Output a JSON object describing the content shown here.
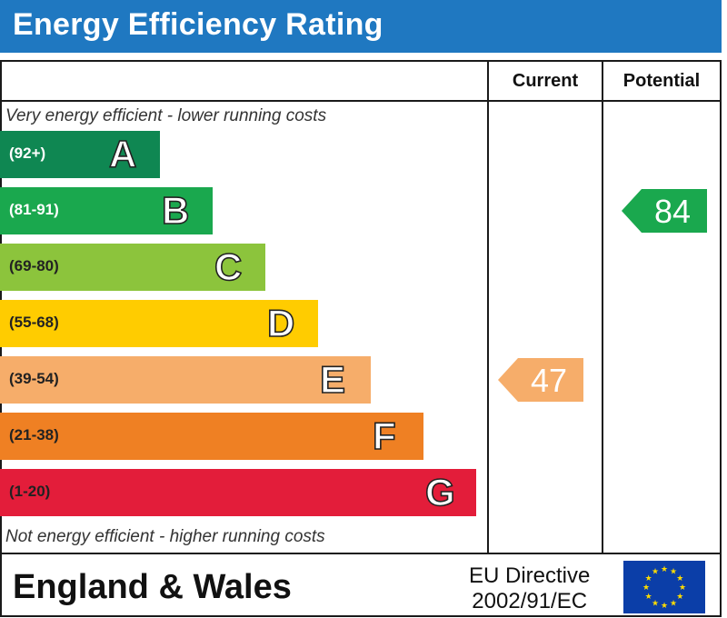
{
  "header": {
    "title": "Energy Efficiency Rating"
  },
  "columns": {
    "current": "Current",
    "potential": "Potential"
  },
  "captions": {
    "top": "Very energy efficient - lower running costs",
    "bottom": "Not energy efficient - higher running costs"
  },
  "chart_data": {
    "type": "bar",
    "categories": [
      "A",
      "B",
      "C",
      "D",
      "E",
      "F",
      "G"
    ],
    "ranges": [
      "(92+)",
      "(81-91)",
      "(69-80)",
      "(55-68)",
      "(39-54)",
      "(21-38)",
      "(1-20)"
    ],
    "colors": [
      "#0f8752",
      "#1aa84e",
      "#8cc43c",
      "#ffcc00",
      "#f6ad6a",
      "#ef8023",
      "#e31d3a"
    ],
    "current": {
      "value": 47,
      "band": "E",
      "color": "#f6ad6a"
    },
    "potential": {
      "value": 84,
      "band": "B",
      "color": "#1aa84e"
    }
  },
  "footer": {
    "region": "England & Wales",
    "directive_line1": "EU Directive",
    "directive_line2": "2002/91/EC"
  },
  "colors": {
    "title_bar": "#1f78c1",
    "eu_flag": "#0b3ea8",
    "eu_stars": "#ffdd00"
  }
}
